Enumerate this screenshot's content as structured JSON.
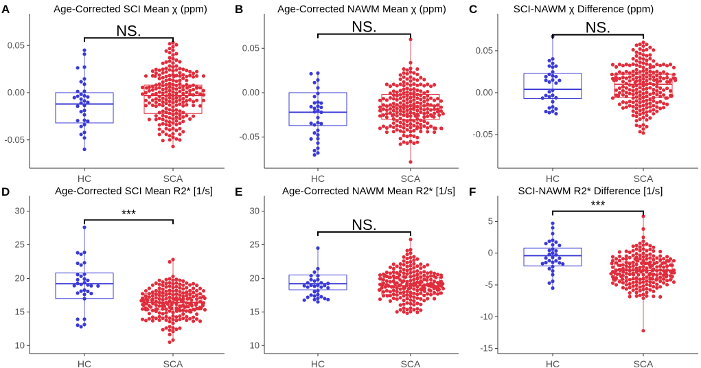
{
  "chart_data": [
    {
      "panel": "A",
      "type": "box-swarm",
      "title": "Age-Corrected SCI Mean χ (ppm)",
      "categories": [
        "HC",
        "SCA"
      ],
      "ylim": [
        -0.08,
        0.08
      ],
      "yticks": [
        -0.05,
        0.0,
        0.05
      ],
      "ytick_labels": [
        "-0.05",
        "0.00",
        "0.05"
      ],
      "series": [
        {
          "name": "HC",
          "color": "#3a3ad6",
          "box": {
            "q1": -0.032,
            "median": -0.012,
            "q3": 0.0,
            "whisker_low": -0.06,
            "whisker_high": 0.045
          },
          "n_points": 32
        },
        {
          "name": "SCA",
          "color": "#e02d3c",
          "box": {
            "q1": -0.022,
            "median": -0.003,
            "q3": 0.008,
            "whisker_low": -0.057,
            "whisker_high": 0.053
          },
          "n_points": 220
        }
      ],
      "comparison": {
        "label": "NS.",
        "y": 0.058
      }
    },
    {
      "panel": "B",
      "type": "box-swarm",
      "title": "Age-Corrected NAWM Mean χ (ppm)",
      "categories": [
        "HC",
        "SCA"
      ],
      "ylim": [
        -0.085,
        0.085
      ],
      "yticks": [
        -0.05,
        0.0,
        0.05
      ],
      "ytick_labels": [
        "-0.05",
        "0.00",
        "0.05"
      ],
      "series": [
        {
          "name": "HC",
          "color": "#3a3ad6",
          "box": {
            "q1": -0.037,
            "median": -0.022,
            "q3": 0.0,
            "whisker_low": -0.07,
            "whisker_high": 0.022
          },
          "n_points": 32
        },
        {
          "name": "SCA",
          "color": "#e02d3c",
          "box": {
            "q1": -0.03,
            "median": -0.015,
            "q3": -0.002,
            "whisker_low": -0.078,
            "whisker_high": 0.06
          },
          "n_points": 220
        }
      ],
      "comparison": {
        "label": "NS.",
        "y": 0.066
      }
    },
    {
      "panel": "C",
      "type": "box-swarm",
      "title": "SCI-NAWM χ Difference (ppm)",
      "categories": [
        "HC",
        "SCA"
      ],
      "ylim": [
        -0.09,
        0.09
      ],
      "yticks": [
        -0.05,
        0.0,
        0.05
      ],
      "ytick_labels": [
        "-0.05",
        "0.00",
        "0.05"
      ],
      "series": [
        {
          "name": "HC",
          "color": "#3a3ad6",
          "box": {
            "q1": -0.007,
            "median": 0.004,
            "q3": 0.023,
            "whisker_low": -0.025,
            "whisker_high": 0.067
          },
          "n_points": 32
        },
        {
          "name": "SCA",
          "color": "#e02d3c",
          "box": {
            "q1": -0.006,
            "median": 0.01,
            "q3": 0.022,
            "whisker_low": -0.048,
            "whisker_high": 0.06
          },
          "n_points": 220
        }
      ],
      "comparison": {
        "label": "NS.",
        "y": 0.069
      }
    },
    {
      "panel": "D",
      "type": "box-swarm",
      "title": "Age-Corrected SCI Mean R2* [1/s]",
      "categories": [
        "HC",
        "SCA"
      ],
      "ylim": [
        8.8,
        31.8
      ],
      "yticks": [
        10,
        15,
        20,
        25,
        30
      ],
      "ytick_labels": [
        "10",
        "15",
        "20",
        "25",
        "30"
      ],
      "series": [
        {
          "name": "HC",
          "color": "#3a3ad6",
          "box": {
            "q1": 17.0,
            "median": 19.2,
            "q3": 20.8,
            "whisker_low": 12.8,
            "whisker_high": 27.6
          },
          "n_points": 32
        },
        {
          "name": "SCA",
          "color": "#e02d3c",
          "box": {
            "q1": 15.3,
            "median": 16.4,
            "q3": 17.7,
            "whisker_low": 10.5,
            "whisker_high": 22.8
          },
          "n_points": 220
        }
      ],
      "comparison": {
        "label": "***",
        "y": 28.7
      }
    },
    {
      "panel": "E",
      "type": "box-swarm",
      "title": "Age-Corrected NAWM Mean R2* [1/s]",
      "categories": [
        "HC",
        "SCA"
      ],
      "ylim": [
        8.8,
        31.8
      ],
      "yticks": [
        10,
        15,
        20,
        25,
        30
      ],
      "ytick_labels": [
        "10",
        "15",
        "20",
        "25",
        "30"
      ],
      "series": [
        {
          "name": "HC",
          "color": "#3a3ad6",
          "box": {
            "q1": 18.3,
            "median": 19.2,
            "q3": 20.5,
            "whisker_low": 16.5,
            "whisker_high": 24.5
          },
          "n_points": 32
        },
        {
          "name": "SCA",
          "color": "#e02d3c",
          "box": {
            "q1": 17.6,
            "median": 18.9,
            "q3": 20.2,
            "whisker_low": 14.8,
            "whisker_high": 25.8
          },
          "n_points": 220
        }
      ],
      "comparison": {
        "label": "NS.",
        "y": 26.9
      }
    },
    {
      "panel": "F",
      "type": "box-swarm",
      "title": "SCI-NAWM R2* Difference [1/s]",
      "categories": [
        "HC",
        "SCA"
      ],
      "ylim": [
        -15.8,
        8.5
      ],
      "yticks": [
        -15,
        -10,
        -5,
        0,
        5
      ],
      "ytick_labels": [
        "-15",
        "-10",
        "-5",
        "0",
        "5"
      ],
      "series": [
        {
          "name": "HC",
          "color": "#3a3ad6",
          "box": {
            "q1": -2.0,
            "median": -0.4,
            "q3": 0.8,
            "whisker_low": -5.5,
            "whisker_high": 4.7
          },
          "n_points": 32
        },
        {
          "name": "SCA",
          "color": "#e02d3c",
          "box": {
            "q1": -4.2,
            "median": -2.7,
            "q3": -1.4,
            "whisker_low": -12.2,
            "whisker_high": 5.8
          },
          "n_points": 220
        }
      ],
      "comparison": {
        "label": "***",
        "y": 6.6
      }
    }
  ]
}
